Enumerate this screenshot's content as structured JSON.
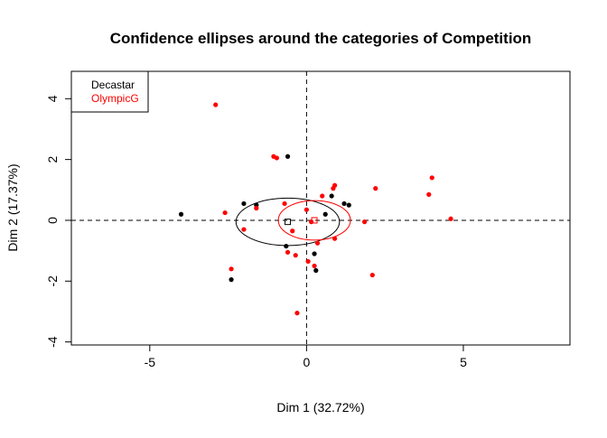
{
  "chart_data": {
    "type": "scatter",
    "title": "Confidence ellipses around the categories of Competition",
    "xlabel": "Dim 1 (32.72%)",
    "ylabel": "Dim 2 (17.37%)",
    "xlim": [
      -7.5,
      8.4
    ],
    "ylim": [
      -4.1,
      4.9
    ],
    "x_ticks": [
      -5,
      0,
      5
    ],
    "y_ticks": [
      -4,
      -2,
      0,
      2,
      4
    ],
    "x_tick_labels": [
      "-5",
      "0",
      "5"
    ],
    "y_tick_labels": [
      "-4",
      "-2",
      "0",
      "2",
      "4"
    ],
    "grid": false,
    "reference_lines": {
      "x": 0,
      "y": 0,
      "style": "dashed"
    },
    "legend": {
      "placement": "top-left",
      "entries": [
        {
          "label": "Decastar",
          "color": "#000000"
        },
        {
          "label": "OlympicG",
          "color": "#ff0000"
        }
      ]
    },
    "series": [
      {
        "name": "Decastar",
        "color": "#000000",
        "points": [
          [
            -4.0,
            0.2
          ],
          [
            -2.0,
            0.55
          ],
          [
            -1.6,
            0.5
          ],
          [
            -0.6,
            2.1
          ],
          [
            -2.4,
            -1.95
          ],
          [
            -0.65,
            -0.85
          ],
          [
            0.25,
            -1.1
          ],
          [
            0.3,
            -1.65
          ],
          [
            0.6,
            0.2
          ],
          [
            0.8,
            0.8
          ],
          [
            1.2,
            0.55
          ],
          [
            1.35,
            0.5
          ]
        ],
        "center": [
          -0.6,
          -0.05
        ],
        "ellipse": {
          "rx": 1.65,
          "ry": 0.78
        }
      },
      {
        "name": "OlympicG",
        "color": "#ff0000",
        "points": [
          [
            -2.9,
            3.8
          ],
          [
            -1.05,
            2.1
          ],
          [
            -0.95,
            2.05
          ],
          [
            -2.6,
            0.25
          ],
          [
            -2.0,
            -0.3
          ],
          [
            -2.4,
            -1.6
          ],
          [
            -1.6,
            0.4
          ],
          [
            -0.7,
            0.55
          ],
          [
            -0.6,
            -1.05
          ],
          [
            -0.45,
            -0.35
          ],
          [
            -0.35,
            -1.15
          ],
          [
            0.0,
            0.35
          ],
          [
            0.05,
            -1.35
          ],
          [
            0.15,
            -0.05
          ],
          [
            0.25,
            -1.5
          ],
          [
            0.35,
            -0.75
          ],
          [
            0.5,
            0.8
          ],
          [
            0.85,
            1.05
          ],
          [
            0.9,
            1.15
          ],
          [
            0.9,
            -0.6
          ],
          [
            1.85,
            -0.05
          ],
          [
            2.2,
            1.05
          ],
          [
            2.1,
            -1.8
          ],
          [
            3.9,
            0.85
          ],
          [
            4.0,
            1.4
          ],
          [
            4.6,
            0.05
          ],
          [
            -0.3,
            -3.05
          ]
        ],
        "center": [
          0.25,
          0.0
        ],
        "ellipse": {
          "rx": 1.15,
          "ry": 0.65
        }
      }
    ]
  }
}
